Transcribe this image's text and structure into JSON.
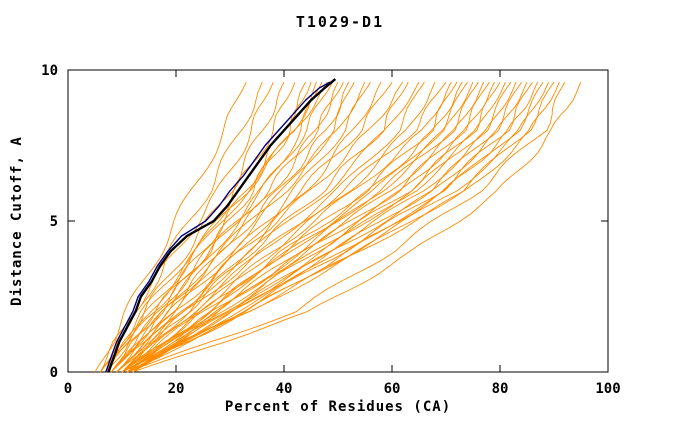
{
  "chart_data": {
    "type": "line",
    "title": "T1029-D1",
    "xlabel": "Percent of Residues (CA)",
    "ylabel": "Distance Cutoff, A",
    "xlim": [
      0,
      100
    ],
    "ylim": [
      0,
      10
    ],
    "xticks": [
      0,
      20,
      40,
      60,
      80,
      100
    ],
    "yticks": [
      0,
      5,
      10
    ],
    "grid": false,
    "legend": "none",
    "colors": {
      "models": "#FF8C00",
      "highlight_black": "#000000",
      "highlight_navy": "#000080"
    },
    "curve_y_levels": [
      0,
      2,
      4,
      6,
      8,
      9.6
    ],
    "model_curves": [
      [
        5,
        11,
        17,
        23,
        29,
        33
      ],
      [
        6,
        13,
        19,
        26,
        32,
        36
      ],
      [
        6,
        12,
        20,
        28,
        34,
        38
      ],
      [
        7,
        14,
        22,
        30,
        36,
        40
      ],
      [
        6,
        15,
        24,
        31,
        38,
        42
      ],
      [
        7,
        16,
        25,
        33,
        40,
        44
      ],
      [
        8,
        17,
        26,
        34,
        41,
        45
      ],
      [
        7,
        15,
        24,
        33,
        42,
        46
      ],
      [
        8,
        18,
        27,
        36,
        43,
        47
      ],
      [
        6,
        14,
        23,
        33,
        42,
        48
      ],
      [
        8,
        17,
        26,
        36,
        44,
        49
      ],
      [
        9,
        19,
        28,
        38,
        46,
        50
      ],
      [
        7,
        16,
        26,
        37,
        46,
        51
      ],
      [
        8,
        18,
        29,
        39,
        48,
        52
      ],
      [
        9,
        20,
        30,
        40,
        49,
        53
      ],
      [
        8,
        18,
        28,
        40,
        50,
        55
      ],
      [
        9,
        21,
        32,
        42,
        51,
        56
      ],
      [
        10,
        22,
        33,
        44,
        53,
        58
      ],
      [
        8,
        19,
        31,
        43,
        54,
        60
      ],
      [
        9,
        20,
        32,
        45,
        56,
        62
      ],
      [
        10,
        22,
        34,
        47,
        58,
        63
      ],
      [
        9,
        21,
        34,
        48,
        59,
        65
      ],
      [
        10,
        23,
        36,
        50,
        61,
        66
      ],
      [
        11,
        24,
        38,
        52,
        63,
        68
      ],
      [
        9,
        22,
        36,
        51,
        64,
        70
      ],
      [
        10,
        24,
        38,
        53,
        66,
        71
      ],
      [
        11,
        26,
        40,
        55,
        67,
        72
      ],
      [
        10,
        25,
        40,
        56,
        68,
        73
      ],
      [
        11,
        26,
        41,
        57,
        69,
        74
      ],
      [
        12,
        28,
        43,
        58,
        70,
        75
      ],
      [
        10,
        25,
        41,
        58,
        71,
        76
      ],
      [
        11,
        27,
        43,
        60,
        72,
        77
      ],
      [
        12,
        28,
        44,
        61,
        73,
        78
      ],
      [
        11,
        27,
        44,
        62,
        74,
        79
      ],
      [
        12,
        29,
        46,
        63,
        75,
        80
      ],
      [
        10,
        30,
        47,
        64,
        76,
        81
      ],
      [
        11,
        28,
        46,
        64,
        77,
        82
      ],
      [
        12,
        30,
        48,
        66,
        78,
        83
      ],
      [
        10,
        31,
        49,
        67,
        79,
        84
      ],
      [
        12,
        30,
        49,
        68,
        80,
        85
      ],
      [
        11,
        32,
        51,
        69,
        81,
        86
      ],
      [
        11,
        33,
        52,
        70,
        82,
        87
      ],
      [
        12,
        31,
        51,
        70,
        83,
        88
      ],
      [
        10,
        33,
        53,
        72,
        84,
        89
      ],
      [
        11,
        34,
        54,
        73,
        85,
        90
      ],
      [
        10,
        33,
        54,
        74,
        86,
        91
      ],
      [
        11,
        42,
        60,
        76,
        88,
        92
      ],
      [
        12,
        45,
        64,
        80,
        90,
        95
      ]
    ],
    "highlight_curves": [
      {
        "name": "black-model",
        "color": "#000000",
        "width": 2.4,
        "points": [
          [
            7.5,
            0
          ],
          [
            8.5,
            0.5
          ],
          [
            9.5,
            1
          ],
          [
            11,
            1.5
          ],
          [
            12.5,
            2
          ],
          [
            13.5,
            2.5
          ],
          [
            15.5,
            3
          ],
          [
            17,
            3.5
          ],
          [
            19,
            4
          ],
          [
            22,
            4.5
          ],
          [
            27,
            5
          ],
          [
            29.5,
            5.5
          ],
          [
            31.5,
            6
          ],
          [
            33.5,
            6.5
          ],
          [
            35.5,
            7
          ],
          [
            37.5,
            7.5
          ],
          [
            40,
            8
          ],
          [
            42.5,
            8.5
          ],
          [
            45,
            9
          ],
          [
            47.5,
            9.4
          ],
          [
            49.5,
            9.7
          ]
        ]
      },
      {
        "name": "navy-model",
        "color": "#000080",
        "width": 1.4,
        "points": [
          [
            7,
            0
          ],
          [
            8,
            0.5
          ],
          [
            9,
            1
          ],
          [
            10.5,
            1.5
          ],
          [
            12,
            2
          ],
          [
            13,
            2.5
          ],
          [
            15,
            3
          ],
          [
            16.5,
            3.5
          ],
          [
            18.5,
            4
          ],
          [
            21,
            4.5
          ],
          [
            25.5,
            5
          ],
          [
            28,
            5.5
          ],
          [
            30,
            6
          ],
          [
            32.5,
            6.5
          ],
          [
            34.5,
            7
          ],
          [
            36.5,
            7.5
          ],
          [
            39,
            8
          ],
          [
            41.5,
            8.5
          ],
          [
            44,
            9
          ],
          [
            46.5,
            9.4
          ],
          [
            48.5,
            9.6
          ]
        ]
      }
    ]
  }
}
